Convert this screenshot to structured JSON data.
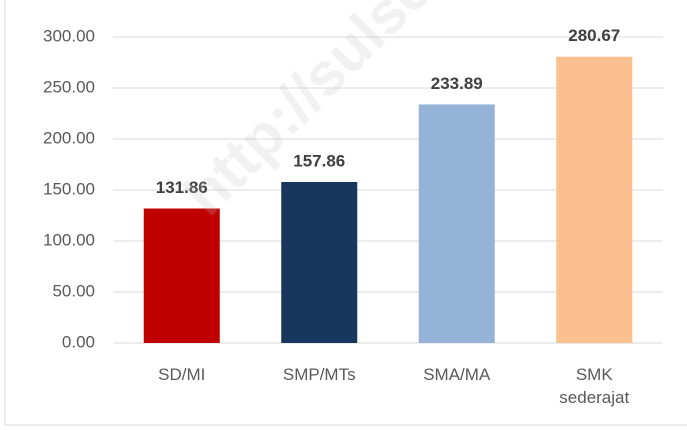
{
  "chart_data": {
    "type": "bar",
    "categories": [
      "SD/MI",
      "SMP/MTs",
      "SMA/MA",
      "SMK sederajat"
    ],
    "values": [
      131.86,
      157.86,
      233.89,
      280.67
    ],
    "colors": [
      "#c00000",
      "#17375e",
      "#95b3d7",
      "#fac090"
    ],
    "ylim": [
      0,
      300
    ],
    "yticks": [
      {
        "value": 0,
        "label": "0.00"
      },
      {
        "value": 50,
        "label": "50.00"
      },
      {
        "value": 100,
        "label": "100.00"
      },
      {
        "value": 150,
        "label": "150.00"
      },
      {
        "value": 200,
        "label": "200.00"
      },
      {
        "value": 250,
        "label": "250.00"
      },
      {
        "value": 300,
        "label": "300.00"
      }
    ],
    "grid": true,
    "watermark": "http://sulsel.bps.go.id"
  }
}
